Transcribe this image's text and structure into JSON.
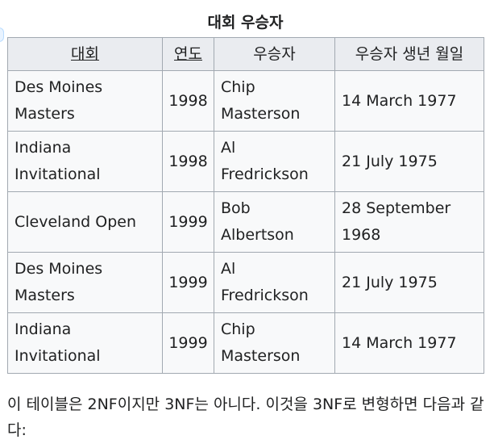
{
  "caption": "대회 우승자",
  "headers": [
    {
      "label": "대회",
      "sortable": true
    },
    {
      "label": "연도",
      "sortable": true
    },
    {
      "label": "우승자",
      "sortable": false
    },
    {
      "label": "우승자 생년 월일",
      "sortable": false
    }
  ],
  "rows": [
    {
      "tournament": "Des Moines Masters",
      "year": "1998",
      "winner": "Chip Masterson",
      "dob": "14 March 1977"
    },
    {
      "tournament": "Indiana Invitational",
      "year": "1998",
      "winner": "Al Fredrickson",
      "dob": "21 July 1975"
    },
    {
      "tournament": "Cleveland Open",
      "year": "1999",
      "winner": "Bob Albertson",
      "dob": "28 September 1968"
    },
    {
      "tournament": "Des Moines Masters",
      "year": "1999",
      "winner": "Al Fredrickson",
      "dob": "21 July 1975"
    },
    {
      "tournament": "Indiana Invitational",
      "year": "1999",
      "winner": "Chip Masterson",
      "dob": "14 March 1977"
    }
  ],
  "note": "이 테이블은 2NF이지만 3NF는 아니다. 이것을 3NF로 변형하면 다음과 같다:"
}
